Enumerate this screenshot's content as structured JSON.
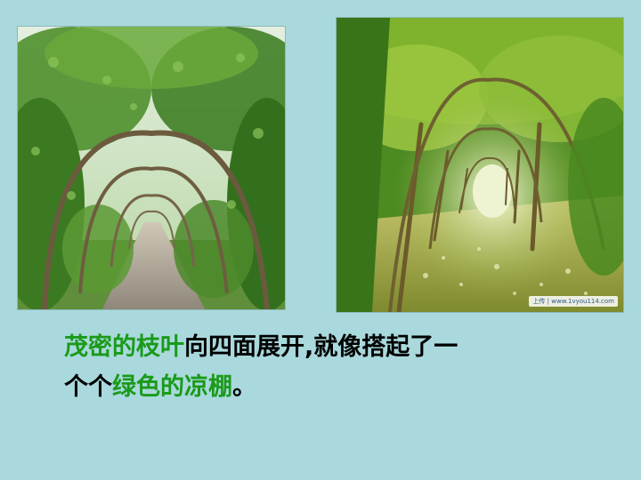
{
  "images": {
    "left": {
      "subject": "green-archway-path"
    },
    "right": {
      "subject": "vine-trellis-tunnel",
      "watermark": "上传 | www.1vyou114.com"
    }
  },
  "caption": {
    "line1": [
      {
        "text": "茂密的枝叶",
        "color": "#1a9a1a"
      },
      {
        "text": "向四面展开,就像搭起了一",
        "color": "#000000"
      }
    ],
    "line2": [
      {
        "text": "个个",
        "color": "#000000"
      },
      {
        "text": "绿色的凉棚",
        "color": "#1a9a1a"
      },
      {
        "text": "。",
        "color": "#000000"
      }
    ]
  },
  "colors": {
    "background": "#a9d9dc",
    "highlight": "#1a9a1a"
  }
}
